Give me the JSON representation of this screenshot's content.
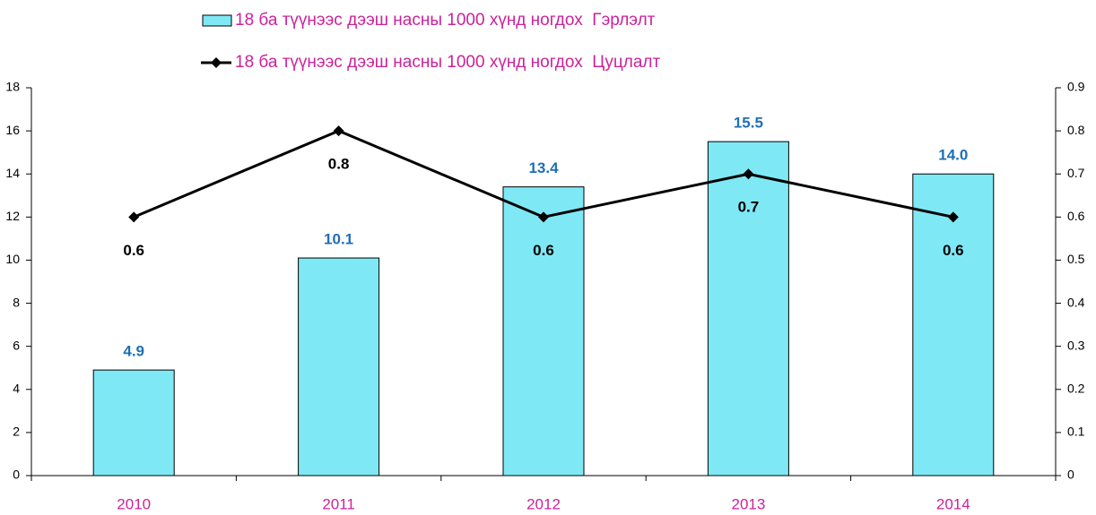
{
  "chart_data": {
    "type": "bar",
    "categories": [
      "2010",
      "2011",
      "2012",
      "2013",
      "2014"
    ],
    "series": [
      {
        "name": "18 ба түүнээс дээш насны 1000 хүнд ногдох  Гэрлэлт",
        "type": "bar",
        "color": "#7fe8f5",
        "values": [
          4.9,
          10.1,
          13.4,
          15.5,
          14.0
        ],
        "value_labels": [
          "4.9",
          "10.1",
          "13.4",
          "15.5",
          "14.0"
        ],
        "label_color": "#1f6fb5"
      },
      {
        "name": "18 ба түүнээс дээш насны 1000 хүнд ногдох  Цуцлалт",
        "type": "line",
        "axis": "y2",
        "color": "#000000",
        "values": [
          0.6,
          0.8,
          0.6,
          0.7,
          0.6
        ],
        "label_color": "#000000"
      }
    ],
    "ylim": [
      0,
      18
    ],
    "yticks": [
      0,
      2,
      4,
      6,
      8,
      10,
      12,
      14,
      16,
      18
    ],
    "y2lim": [
      0,
      0.9
    ],
    "y2ticks": [
      0,
      0.1,
      0.2,
      0.3,
      0.4,
      0.5,
      0.6,
      0.7,
      0.8,
      0.9
    ],
    "grid": false,
    "legend": "top"
  }
}
